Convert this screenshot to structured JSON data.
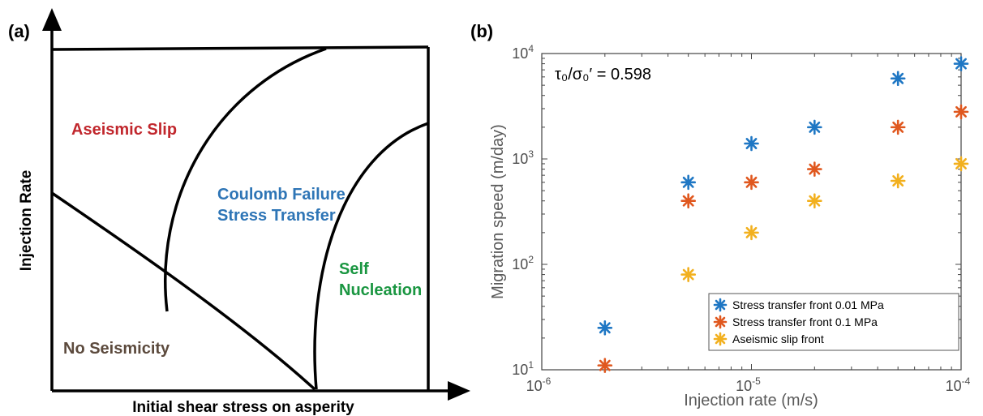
{
  "panel_a": {
    "label": "(a)",
    "xlabel": "Initial shear stress on asperity",
    "ylabel": "Injection Rate",
    "regions": {
      "aseismic": "Aseismic Slip",
      "coulomb_line1": "Coulomb Failure",
      "coulomb_line2": "Stress Transfer",
      "self_line1": "Self",
      "self_line2": "Nucleation",
      "none": "No Seismicity"
    },
    "colors": {
      "aseismic": "#c1272d",
      "coulomb": "#2e75b6",
      "self": "#1a9641",
      "none": "#5c4a3d"
    }
  },
  "panel_b": {
    "label": "(b)"
  },
  "chart_data": {
    "type": "scatter",
    "title": "",
    "annotation": "τ₀/σ₀′ = 0.598",
    "xlabel": "Injection rate (m/s)",
    "ylabel": "Migration speed (m/day)",
    "xscale": "log",
    "yscale": "log",
    "xlim": [
      1e-06,
      0.0001
    ],
    "ylim": [
      10,
      10000
    ],
    "x_ticks": [
      {
        "value": 1e-06,
        "base": "10",
        "exp": "-6"
      },
      {
        "value": 1e-05,
        "base": "10",
        "exp": "-5"
      },
      {
        "value": 0.0001,
        "base": "10",
        "exp": "-4"
      }
    ],
    "y_ticks": [
      {
        "value": 10,
        "base": "10",
        "exp": "1"
      },
      {
        "value": 100,
        "base": "10",
        "exp": "2"
      },
      {
        "value": 1000,
        "base": "10",
        "exp": "3"
      },
      {
        "value": 10000,
        "base": "10",
        "exp": "4"
      }
    ],
    "legend_position": "bottom-right",
    "series": [
      {
        "name": "Stress transfer front 0.01 MPa",
        "color": "#1f77c4",
        "x": [
          2e-06,
          5e-06,
          1e-05,
          2e-05,
          5e-05,
          0.0001
        ],
        "y": [
          25,
          600,
          1400,
          2000,
          5800,
          8000
        ]
      },
      {
        "name": "Stress transfer front 0.1 MPa",
        "color": "#e0581f",
        "x": [
          2e-06,
          5e-06,
          1e-05,
          2e-05,
          5e-05,
          0.0001
        ],
        "y": [
          11,
          400,
          600,
          800,
          2000,
          2800
        ]
      },
      {
        "name": "Aseismic slip front",
        "color": "#f2b01e",
        "x": [
          5e-06,
          1e-05,
          2e-05,
          5e-05,
          0.0001
        ],
        "y": [
          80,
          200,
          400,
          620,
          900
        ]
      }
    ]
  }
}
